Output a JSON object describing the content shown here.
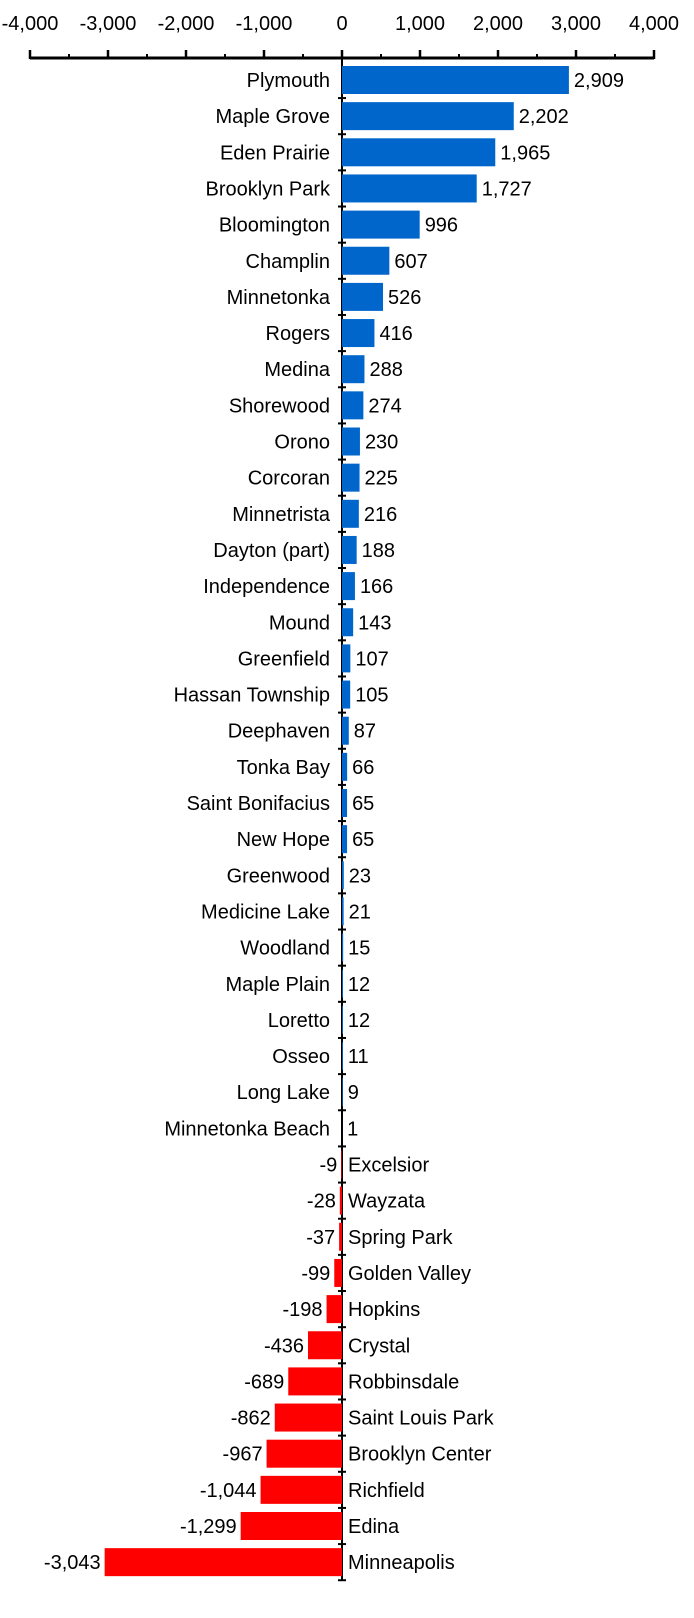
{
  "chart_data": {
    "type": "bar",
    "orientation": "horizontal",
    "xlim": [
      -4000,
      4000
    ],
    "x_ticks": [
      -4000,
      -3000,
      -2000,
      -1000,
      0,
      1000,
      2000,
      3000,
      4000
    ],
    "x_tick_labels": [
      "-4,000",
      "-3,000",
      "-2,000",
      "-1,000",
      "0",
      "1,000",
      "2,000",
      "3,000",
      "4,000"
    ],
    "axis_position": "top",
    "grid": false,
    "colors": {
      "positive": "#0066cc",
      "negative": "#ff0000"
    },
    "categories": [
      "Plymouth",
      "Maple Grove",
      "Eden Prairie",
      "Brooklyn Park",
      "Bloomington",
      "Champlin",
      "Minnetonka",
      "Rogers",
      "Medina",
      "Shorewood",
      "Orono",
      "Corcoran",
      "Minnetrista",
      "Dayton (part)",
      "Independence",
      "Mound",
      "Greenfield",
      "Hassan Township",
      "Deephaven",
      "Tonka Bay",
      "Saint Bonifacius",
      "New Hope",
      "Greenwood",
      "Medicine Lake",
      "Woodland",
      "Maple Plain",
      "Loretto",
      "Osseo",
      "Long Lake",
      "Minnetonka Beach",
      "Excelsior",
      "Wayzata",
      "Spring Park",
      "Golden Valley",
      "Hopkins",
      "Crystal",
      "Robbinsdale",
      "Saint Louis Park",
      "Brooklyn Center",
      "Richfield",
      "Edina",
      "Minneapolis"
    ],
    "values": [
      2909,
      2202,
      1965,
      1727,
      996,
      607,
      526,
      416,
      288,
      274,
      230,
      225,
      216,
      188,
      166,
      143,
      107,
      105,
      87,
      66,
      65,
      65,
      23,
      21,
      15,
      12,
      12,
      11,
      9,
      1,
      -9,
      -28,
      -37,
      -99,
      -198,
      -436,
      -689,
      -862,
      -967,
      -1044,
      -1299,
      -3043
    ],
    "value_labels": [
      "2,909",
      "2,202",
      "1,965",
      "1,727",
      "996",
      "607",
      "526",
      "416",
      "288",
      "274",
      "230",
      "225",
      "216",
      "188",
      "166",
      "143",
      "107",
      "105",
      "87",
      "66",
      "65",
      "65",
      "23",
      "21",
      "15",
      "12",
      "12",
      "11",
      "9",
      "1",
      "-9",
      "-28",
      "-37",
      "-99",
      "-198",
      "-436",
      "-689",
      "-862",
      "-967",
      "-1,044",
      "-1,299",
      "-3,043"
    ]
  }
}
